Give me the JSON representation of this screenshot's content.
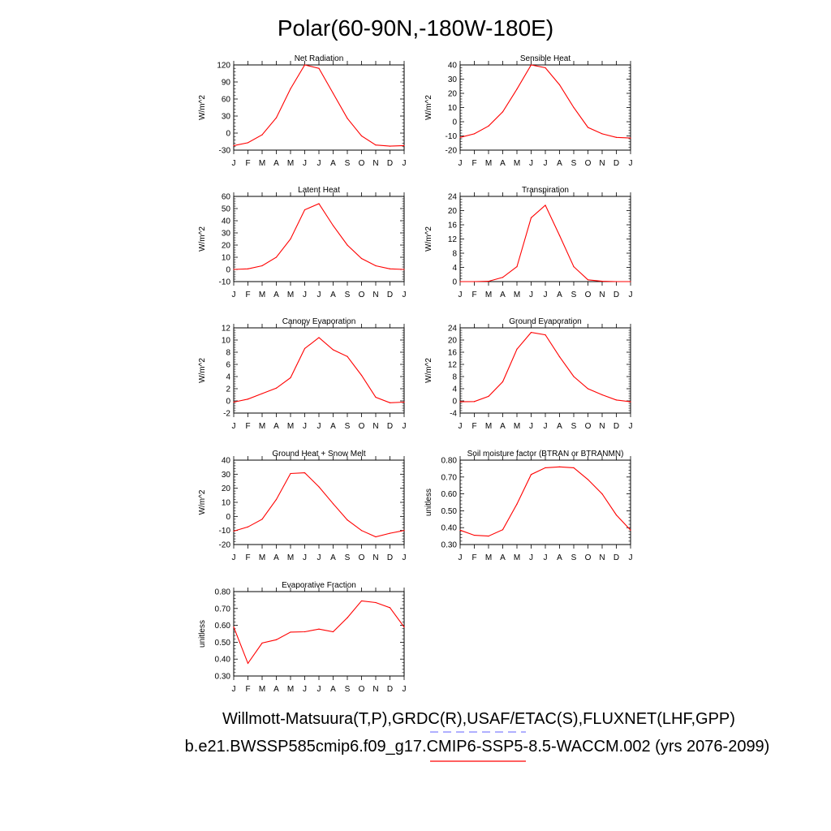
{
  "page": {
    "title": "Polar(60-90N,-180W-180E)",
    "footer_obs": "Willmott-Matsuura(T,P),GRDC(R),USAF/ETAC(S),FLUXNET(LHF,GPP)",
    "footer_case": "b.e21.BWSSP585cmip6.f09_g17.CMIP6-SSP5-8.5-WACCM.002 (yrs 2076-2099)",
    "colors": {
      "model_line": "#ff0000",
      "obs_line": "#8080ff",
      "axis": "#000000"
    }
  },
  "chart_data": [
    {
      "type": "line",
      "title": "Net Radiation",
      "ylabel": "W/m^2",
      "categories": [
        "J",
        "F",
        "M",
        "A",
        "M",
        "J",
        "J",
        "A",
        "S",
        "O",
        "N",
        "D",
        "J"
      ],
      "ylim": [
        -30,
        120
      ],
      "yticks": [
        -30,
        0,
        30,
        60,
        90,
        120
      ],
      "ytick_labels": [
        "-30",
        "0",
        "30",
        "60",
        "90",
        "120"
      ],
      "values": [
        -22,
        -17,
        -3,
        27,
        78,
        120,
        114,
        70,
        26,
        -5,
        -21,
        -23,
        -22
      ]
    },
    {
      "type": "line",
      "title": "Sensible Heat",
      "ylabel": "W/m^2",
      "categories": [
        "J",
        "F",
        "M",
        "A",
        "M",
        "J",
        "J",
        "A",
        "S",
        "O",
        "N",
        "D",
        "J"
      ],
      "ylim": [
        -20,
        40
      ],
      "yticks": [
        -20,
        -10,
        0,
        10,
        20,
        30,
        40
      ],
      "ytick_labels": [
        "-20",
        "-10",
        "0",
        "10",
        "20",
        "30",
        "40"
      ],
      "values": [
        -11,
        -8.5,
        -3,
        7,
        23,
        40,
        38,
        26,
        10,
        -4,
        -8.5,
        -11,
        -11.5
      ]
    },
    {
      "type": "line",
      "title": "Latent Heat",
      "ylabel": "W/m^2",
      "categories": [
        "J",
        "F",
        "M",
        "A",
        "M",
        "J",
        "J",
        "A",
        "S",
        "O",
        "N",
        "D",
        "J"
      ],
      "ylim": [
        -10,
        60
      ],
      "yticks": [
        -10,
        0,
        10,
        20,
        30,
        40,
        50,
        60
      ],
      "ytick_labels": [
        "-10",
        "0",
        "10",
        "20",
        "30",
        "40",
        "50",
        "60"
      ],
      "values": [
        0,
        0.5,
        3,
        10,
        25,
        49,
        54,
        36,
        20,
        9,
        3,
        0.5,
        0
      ]
    },
    {
      "type": "line",
      "title": "Transpiration",
      "ylabel": "W/m^2",
      "categories": [
        "J",
        "F",
        "M",
        "A",
        "M",
        "J",
        "J",
        "A",
        "S",
        "O",
        "N",
        "D",
        "J"
      ],
      "ylim": [
        0,
        24
      ],
      "yticks": [
        0,
        4,
        8,
        12,
        16,
        20,
        24
      ],
      "ytick_labels": [
        "0",
        "4",
        "8",
        "12",
        "16",
        "20",
        "24"
      ],
      "values": [
        0,
        0,
        0.1,
        1.2,
        4.2,
        18,
        21.5,
        13,
        4.2,
        0.5,
        0.1,
        0,
        0
      ]
    },
    {
      "type": "line",
      "title": "Canopy Evaporation",
      "ylabel": "W/m^2",
      "categories": [
        "J",
        "F",
        "M",
        "A",
        "M",
        "J",
        "J",
        "A",
        "S",
        "O",
        "N",
        "D",
        "J"
      ],
      "ylim": [
        -2,
        12
      ],
      "yticks": [
        -2,
        0,
        2,
        4,
        6,
        8,
        10,
        12
      ],
      "ytick_labels": [
        "-2",
        "0",
        "2",
        "4",
        "6",
        "8",
        "10",
        "12"
      ],
      "values": [
        -0.2,
        0.3,
        1.2,
        2.1,
        3.8,
        8.6,
        10.4,
        8.4,
        7.3,
        4.2,
        0.6,
        -0.3,
        -0.2
      ]
    },
    {
      "type": "line",
      "title": "Ground Evaporation",
      "ylabel": "W/m^2",
      "categories": [
        "J",
        "F",
        "M",
        "A",
        "M",
        "J",
        "J",
        "A",
        "S",
        "O",
        "N",
        "D",
        "J"
      ],
      "ylim": [
        -4,
        24
      ],
      "yticks": [
        -4,
        0,
        4,
        8,
        12,
        16,
        20,
        24
      ],
      "ytick_labels": [
        "-4",
        "0",
        "4",
        "8",
        "12",
        "16",
        "20",
        "24"
      ],
      "values": [
        -0.3,
        -0.2,
        1.5,
        6.3,
        17,
        22.5,
        21.7,
        14.5,
        8,
        4,
        2,
        0.3,
        -0.3
      ]
    },
    {
      "type": "line",
      "title": "Ground Heat + Snow Melt",
      "ylabel": "W/m^2",
      "categories": [
        "J",
        "F",
        "M",
        "A",
        "M",
        "J",
        "J",
        "A",
        "S",
        "O",
        "N",
        "D",
        "J"
      ],
      "ylim": [
        -20,
        40
      ],
      "yticks": [
        -20,
        -10,
        0,
        10,
        20,
        30,
        40
      ],
      "ytick_labels": [
        "-20",
        "-10",
        "0",
        "10",
        "20",
        "30",
        "40"
      ],
      "values": [
        -10.5,
        -7.5,
        -2,
        12,
        30.5,
        31,
        21,
        9,
        -2.5,
        -10,
        -14.5,
        -12,
        -10
      ]
    },
    {
      "type": "line",
      "title": "Soil moisture factor (BTRAN or BTRANMN)",
      "ylabel": "unitless",
      "categories": [
        "J",
        "F",
        "M",
        "A",
        "M",
        "J",
        "J",
        "A",
        "S",
        "O",
        "N",
        "D",
        "J"
      ],
      "ylim": [
        0.3,
        0.8
      ],
      "yticks": [
        0.3,
        0.4,
        0.5,
        0.6,
        0.7,
        0.8
      ],
      "ytick_labels": [
        "0.30",
        "0.40",
        "0.50",
        "0.60",
        "0.70",
        "0.80"
      ],
      "values": [
        0.385,
        0.355,
        0.35,
        0.388,
        0.54,
        0.715,
        0.755,
        0.76,
        0.755,
        0.685,
        0.6,
        0.475,
        0.385
      ]
    },
    {
      "type": "line",
      "title": "Evaporative Fraction",
      "ylabel": "unitless",
      "categories": [
        "J",
        "F",
        "M",
        "A",
        "M",
        "J",
        "J",
        "A",
        "S",
        "O",
        "N",
        "D",
        "J"
      ],
      "ylim": [
        0.3,
        0.8
      ],
      "yticks": [
        0.3,
        0.4,
        0.5,
        0.6,
        0.7,
        0.8
      ],
      "ytick_labels": [
        "0.30",
        "0.40",
        "0.50",
        "0.60",
        "0.70",
        "0.80"
      ],
      "values": [
        0.59,
        0.375,
        0.495,
        0.515,
        0.56,
        0.562,
        0.578,
        0.562,
        0.645,
        0.745,
        0.735,
        0.705,
        0.59
      ]
    }
  ]
}
